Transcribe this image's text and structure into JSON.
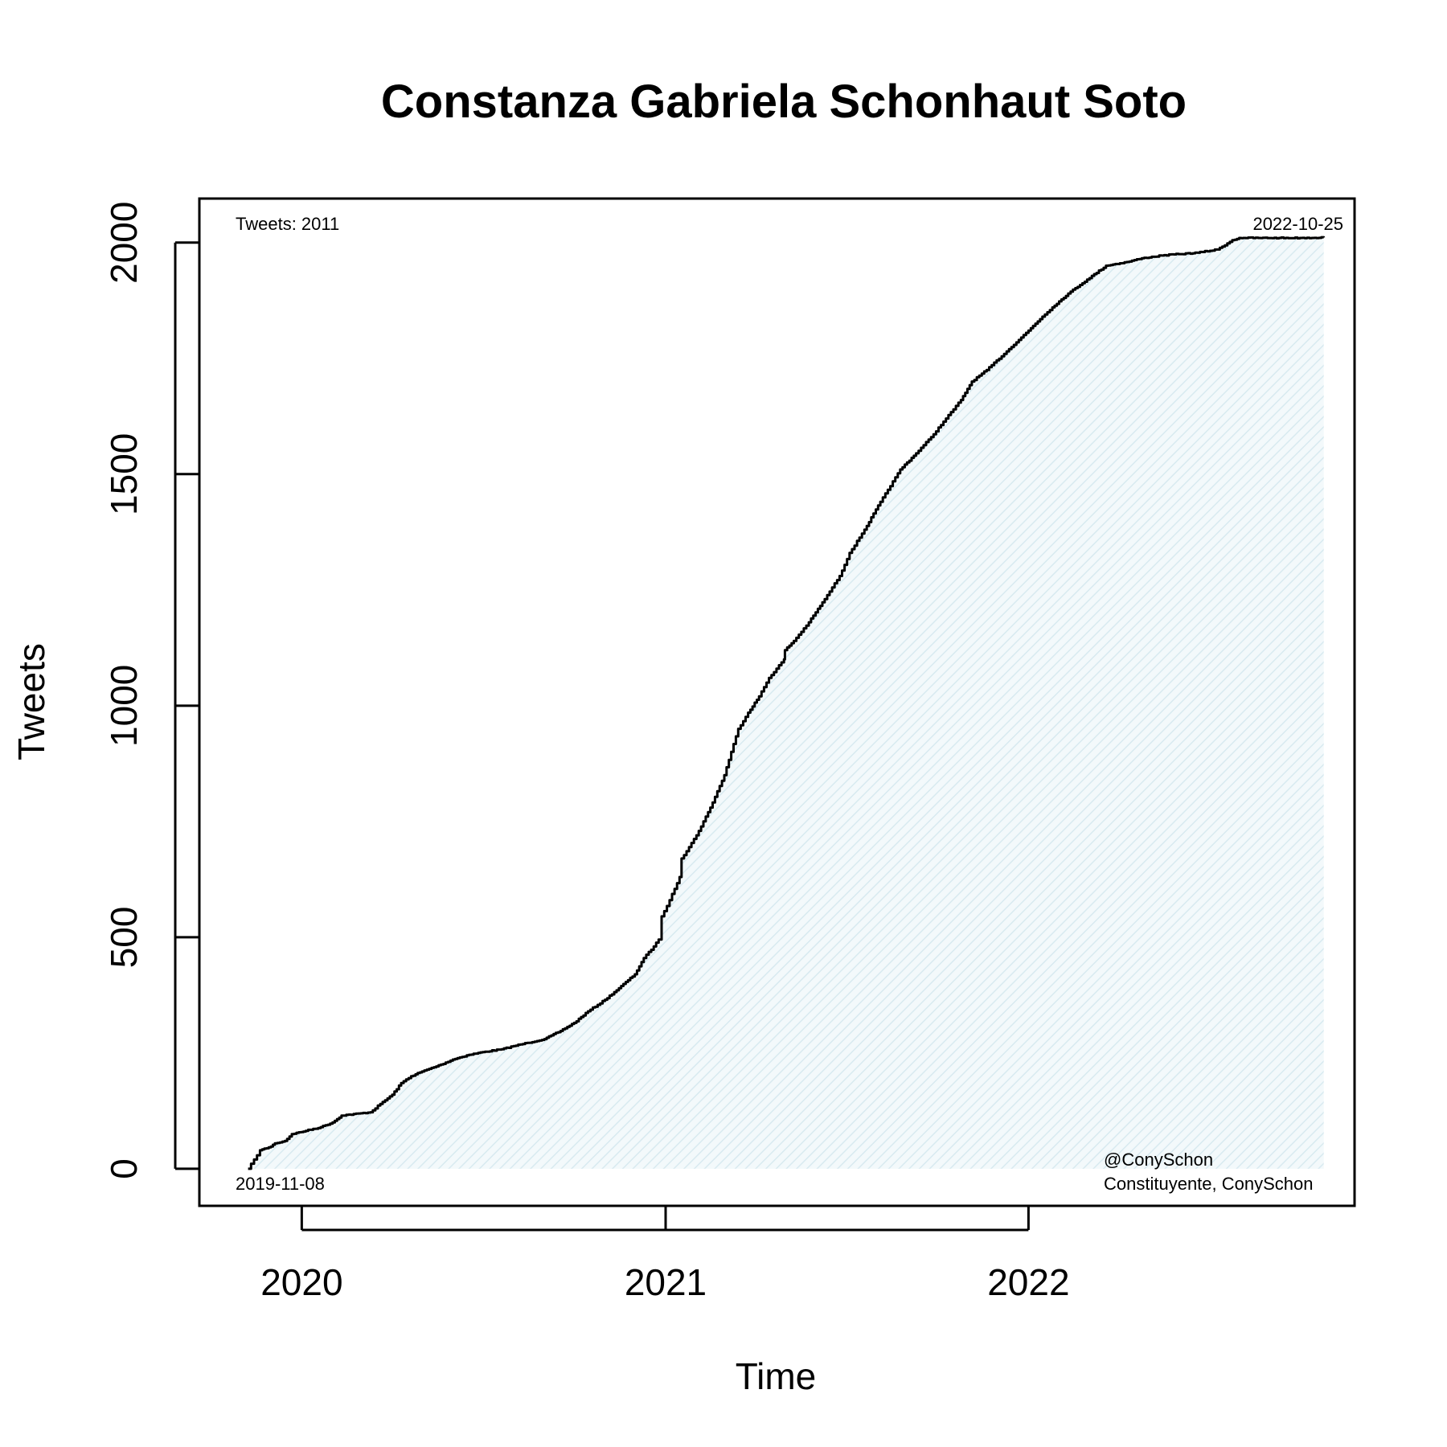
{
  "chart_data": {
    "type": "area",
    "title": "Constanza Gabriela Schonhaut Soto",
    "xlabel": "Time",
    "ylabel": "Tweets",
    "x_ticks": [
      "2020",
      "2021",
      "2022"
    ],
    "y_ticks": [
      "0",
      "500",
      "1000",
      "1500",
      "2000"
    ],
    "x_range": [
      "2019-09-20",
      "2022-11-25"
    ],
    "ylim": [
      -80,
      2095
    ],
    "grid": false,
    "colors": {
      "line": "#000000",
      "fill": "#e6f2f6",
      "hatch": "#d4e8ee"
    },
    "series": [
      {
        "x": [
          "2019-11-08",
          "2019-11-14",
          "2019-11-20",
          "2019-12-01",
          "2019-12-05",
          "2019-12-15",
          "2019-12-22",
          "2020-01-05",
          "2020-01-20",
          "2020-02-01",
          "2020-02-10",
          "2020-03-10",
          "2020-03-20",
          "2020-04-01",
          "2020-04-10",
          "2020-04-20",
          "2020-05-01",
          "2020-05-20",
          "2020-06-01",
          "2020-06-15",
          "2020-07-01",
          "2020-07-20",
          "2020-08-01",
          "2020-08-15",
          "2020-09-01",
          "2020-09-15",
          "2020-10-01",
          "2020-10-15",
          "2020-11-01",
          "2020-11-15",
          "2020-12-01",
          "2020-12-10",
          "2020-12-20",
          "2020-12-25",
          "2020-12-28",
          "2021-01-05",
          "2021-01-15",
          "2021-01-17",
          "2021-02-01",
          "2021-02-15",
          "2021-03-01",
          "2021-03-15",
          "2021-03-25",
          "2021-04-05",
          "2021-04-15",
          "2021-04-30",
          "2021-05-01",
          "2021-05-10",
          "2021-05-25",
          "2021-06-10",
          "2021-06-25",
          "2021-07-05",
          "2021-07-20",
          "2021-08-05",
          "2021-08-25",
          "2021-09-10",
          "2021-09-25",
          "2021-10-10",
          "2021-10-25",
          "2021-11-05",
          "2021-11-20",
          "2021-12-10",
          "2022-01-01",
          "2022-01-15",
          "2022-01-25",
          "2022-02-10",
          "2022-03-01",
          "2022-03-20",
          "2022-04-10",
          "2022-04-25",
          "2022-05-15",
          "2022-06-01",
          "2022-06-20",
          "2022-07-10",
          "2022-07-25",
          "2022-08-01",
          "2022-08-05",
          "2022-08-20",
          "2022-09-10",
          "2022-10-01",
          "2022-10-25"
        ],
        "values": [
          0,
          20,
          40,
          48,
          55,
          60,
          75,
          82,
          90,
          100,
          115,
          122,
          140,
          160,
          185,
          200,
          210,
          225,
          236,
          245,
          252,
          258,
          265,
          272,
          280,
          295,
          315,
          340,
          365,
          390,
          420,
          455,
          480,
          495,
          545,
          580,
          630,
          670,
          720,
          780,
          850,
          950,
          985,
          1020,
          1060,
          1100,
          1120,
          1140,
          1180,
          1230,
          1280,
          1330,
          1380,
          1440,
          1510,
          1545,
          1580,
          1620,
          1660,
          1700,
          1725,
          1765,
          1810,
          1840,
          1860,
          1890,
          1920,
          1950,
          1958,
          1966,
          1972,
          1975,
          1978,
          1985,
          2005,
          2010,
          2010,
          2010,
          2010,
          2010,
          2011
        ]
      }
    ],
    "annotations": {
      "tweet_count": "Tweets: 2011",
      "end_date": "2022-10-25",
      "start_date": "2019-11-08",
      "handle": "@ConySchon",
      "description": "Constituyente, ConySchon"
    }
  }
}
